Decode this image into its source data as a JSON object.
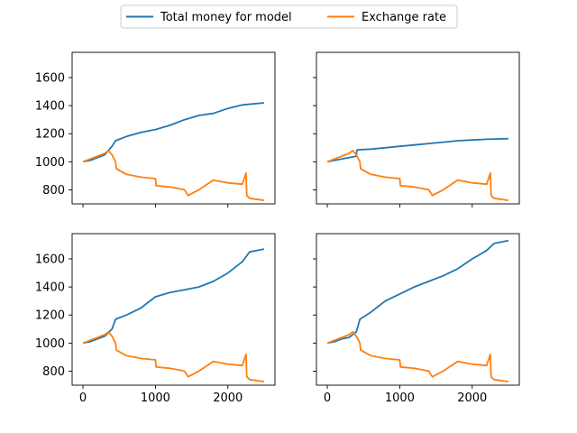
{
  "legend": {
    "items": [
      {
        "label": "Total money for model",
        "color": "#1f77b4"
      },
      {
        "label": "Exchange rate",
        "color": "#ff7f0e"
      }
    ],
    "placement": "top-center"
  },
  "chart_data": [
    {
      "type": "line",
      "panel": "top-left",
      "xlim": [
        -150,
        2650
      ],
      "ylim": [
        700,
        1780
      ],
      "xticks": [
        0,
        1000,
        2000
      ],
      "yticks": [
        800,
        1000,
        1200,
        1400,
        1600
      ],
      "show_xtick_labels": false,
      "show_ytick_labels": true,
      "series": [
        {
          "name": "Total money for model",
          "color": "#1f77b4",
          "x": [
            0,
            100,
            200,
            300,
            400,
            450,
            600,
            800,
            1000,
            1200,
            1400,
            1600,
            1800,
            2000,
            2200,
            2500
          ],
          "y": [
            1000,
            1010,
            1030,
            1050,
            1110,
            1150,
            1180,
            1210,
            1230,
            1260,
            1300,
            1330,
            1345,
            1380,
            1405,
            1420
          ]
        },
        {
          "name": "Exchange rate",
          "color": "#ff7f0e",
          "x": [
            0,
            100,
            200,
            300,
            350,
            400,
            450,
            460,
            600,
            800,
            1000,
            1010,
            1200,
            1400,
            1450,
            1600,
            1800,
            2000,
            2200,
            2250,
            2260,
            2300,
            2500
          ],
          "y": [
            1000,
            1020,
            1040,
            1060,
            1080,
            1050,
            1000,
            950,
            910,
            890,
            880,
            830,
            820,
            800,
            760,
            800,
            870,
            850,
            840,
            920,
            760,
            740,
            725
          ]
        }
      ]
    },
    {
      "type": "line",
      "panel": "top-right",
      "xlim": [
        -150,
        2650
      ],
      "ylim": [
        700,
        1780
      ],
      "xticks": [
        0,
        1000,
        2000
      ],
      "yticks": [
        800,
        1000,
        1200,
        1400,
        1600
      ],
      "show_xtick_labels": false,
      "show_ytick_labels": false,
      "series": [
        {
          "name": "Total money for model",
          "color": "#1f77b4",
          "x": [
            0,
            100,
            200,
            300,
            400,
            410,
            600,
            800,
            1000,
            1200,
            1400,
            1600,
            1800,
            2000,
            2200,
            2500
          ],
          "y": [
            1000,
            1010,
            1020,
            1030,
            1040,
            1085,
            1090,
            1100,
            1110,
            1120,
            1130,
            1140,
            1150,
            1155,
            1160,
            1165
          ]
        },
        {
          "name": "Exchange rate",
          "color": "#ff7f0e",
          "x": [
            0,
            100,
            200,
            300,
            350,
            400,
            450,
            460,
            600,
            800,
            1000,
            1010,
            1200,
            1400,
            1450,
            1600,
            1800,
            2000,
            2200,
            2250,
            2260,
            2300,
            2500
          ],
          "y": [
            1000,
            1020,
            1040,
            1060,
            1080,
            1050,
            1000,
            950,
            910,
            890,
            880,
            830,
            820,
            800,
            760,
            800,
            870,
            850,
            840,
            920,
            760,
            740,
            725
          ]
        }
      ]
    },
    {
      "type": "line",
      "panel": "bottom-left",
      "xlim": [
        -150,
        2650
      ],
      "ylim": [
        700,
        1780
      ],
      "xticks": [
        0,
        1000,
        2000
      ],
      "yticks": [
        800,
        1000,
        1200,
        1400,
        1600
      ],
      "show_xtick_labels": true,
      "show_ytick_labels": true,
      "series": [
        {
          "name": "Total money for model",
          "color": "#1f77b4",
          "x": [
            0,
            100,
            200,
            300,
            400,
            450,
            600,
            800,
            1000,
            1200,
            1400,
            1600,
            1800,
            2000,
            2200,
            2300,
            2500
          ],
          "y": [
            1000,
            1010,
            1030,
            1050,
            1100,
            1170,
            1200,
            1250,
            1330,
            1360,
            1380,
            1400,
            1440,
            1500,
            1580,
            1650,
            1670
          ]
        },
        {
          "name": "Exchange rate",
          "color": "#ff7f0e",
          "x": [
            0,
            100,
            200,
            300,
            350,
            400,
            450,
            460,
            600,
            800,
            1000,
            1010,
            1200,
            1400,
            1450,
            1600,
            1800,
            2000,
            2200,
            2250,
            2260,
            2300,
            2500
          ],
          "y": [
            1000,
            1020,
            1040,
            1060,
            1080,
            1050,
            1000,
            950,
            910,
            890,
            880,
            830,
            820,
            800,
            760,
            800,
            870,
            850,
            840,
            920,
            760,
            740,
            725
          ]
        }
      ]
    },
    {
      "type": "line",
      "panel": "bottom-right",
      "xlim": [
        -150,
        2650
      ],
      "ylim": [
        700,
        1780
      ],
      "xticks": [
        0,
        1000,
        2000
      ],
      "yticks": [
        800,
        1000,
        1200,
        1400,
        1600
      ],
      "show_xtick_labels": true,
      "show_ytick_labels": false,
      "series": [
        {
          "name": "Total money for model",
          "color": "#1f77b4",
          "x": [
            0,
            100,
            200,
            300,
            400,
            450,
            600,
            800,
            1000,
            1200,
            1400,
            1600,
            1800,
            2000,
            2200,
            2300,
            2500
          ],
          "y": [
            1000,
            1010,
            1030,
            1040,
            1080,
            1170,
            1220,
            1300,
            1350,
            1400,
            1440,
            1480,
            1530,
            1600,
            1660,
            1710,
            1730
          ]
        },
        {
          "name": "Exchange rate",
          "color": "#ff7f0e",
          "x": [
            0,
            100,
            200,
            300,
            350,
            400,
            450,
            460,
            600,
            800,
            1000,
            1010,
            1200,
            1400,
            1450,
            1600,
            1800,
            2000,
            2200,
            2250,
            2260,
            2300,
            2500
          ],
          "y": [
            1000,
            1020,
            1040,
            1060,
            1080,
            1050,
            1000,
            950,
            910,
            890,
            880,
            830,
            820,
            800,
            760,
            800,
            870,
            850,
            840,
            920,
            760,
            740,
            725
          ]
        }
      ]
    }
  ]
}
